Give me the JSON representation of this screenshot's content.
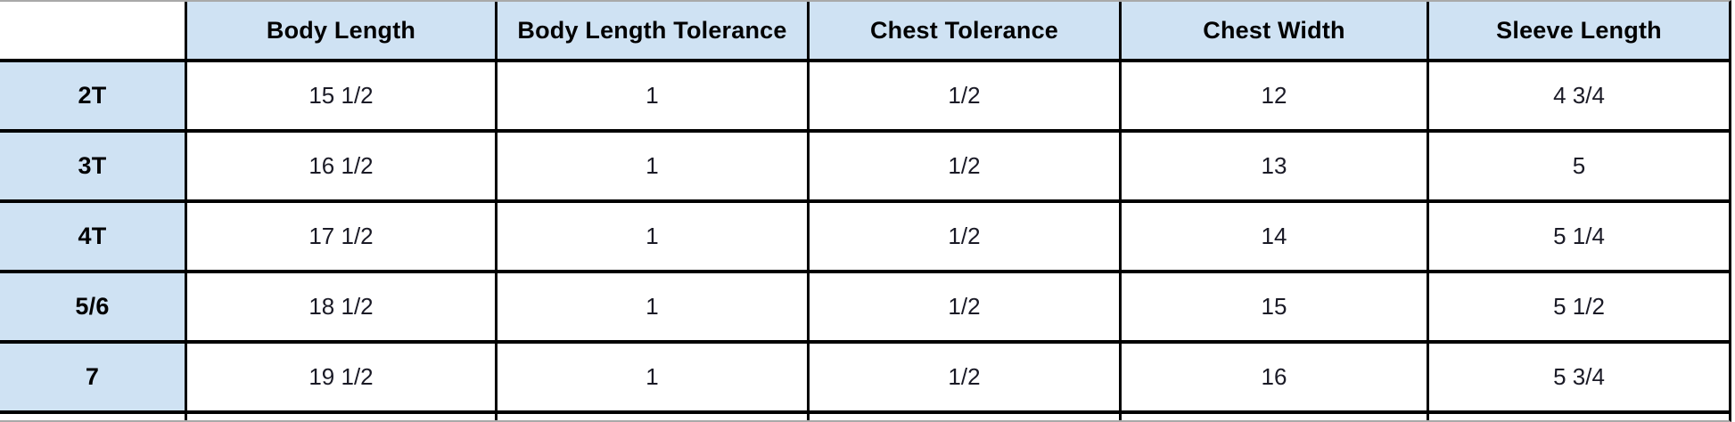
{
  "table": {
    "columns": [
      "",
      "Body Length",
      "Body Length Tolerance",
      "Chest Tolerance",
      "Chest Width",
      "Sleeve Length"
    ],
    "rows": [
      {
        "label": "2T",
        "cells": [
          "15 1/2",
          "1",
          "1/2",
          "12",
          "4 3/4"
        ]
      },
      {
        "label": "3T",
        "cells": [
          "16 1/2",
          "1",
          "1/2",
          "13",
          "5"
        ]
      },
      {
        "label": "4T",
        "cells": [
          "17 1/2",
          "1",
          "1/2",
          "14",
          "5 1/4"
        ]
      },
      {
        "label": "5/6",
        "cells": [
          "18 1/2",
          "1",
          "1/2",
          "15",
          "5 1/2"
        ]
      },
      {
        "label": "7",
        "cells": [
          "19 1/2",
          "1",
          "1/2",
          "16",
          "5 3/4"
        ]
      }
    ]
  },
  "colors": {
    "header_bg": "#cfe2f3",
    "border": "#000000",
    "edge_gray": "#a9a9a9",
    "data_text": "#1a1a26"
  }
}
